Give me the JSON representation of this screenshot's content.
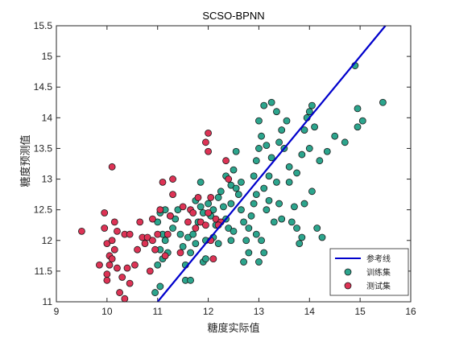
{
  "chart_data": {
    "type": "scatter",
    "title": "SCSO-BPNN",
    "xlabel": "糖度实际值",
    "ylabel": "糖度预测值",
    "xlim": [
      9,
      16
    ],
    "ylim": [
      11,
      15.5
    ],
    "x_ticks": [
      "9",
      "10",
      "11",
      "12",
      "13",
      "14",
      "15",
      "16"
    ],
    "y_ticks": [
      "11",
      "11.5",
      "12",
      "12.5",
      "13",
      "13.5",
      "14",
      "14.5",
      "15",
      "15.5"
    ],
    "grid": false,
    "legend_position": "bottom-right",
    "series": [
      {
        "name": "参考线",
        "kind": "line",
        "color": "#0000cc",
        "x": [
          11.0,
          15.5
        ],
        "y": [
          11.0,
          15.5
        ]
      },
      {
        "name": "训练集",
        "kind": "scatter",
        "color": "#2ca58d",
        "points": [
          [
            10.95,
            11.15
          ],
          [
            11.05,
            11.25
          ],
          [
            11.0,
            11.6
          ],
          [
            11.1,
            11.7
          ],
          [
            11.2,
            11.8
          ],
          [
            11.05,
            11.85
          ],
          [
            11.15,
            12.0
          ],
          [
            11.1,
            12.1
          ],
          [
            11.0,
            12.3
          ],
          [
            11.05,
            12.45
          ],
          [
            11.15,
            12.5
          ],
          [
            11.3,
            12.2
          ],
          [
            11.35,
            12.35
          ],
          [
            11.25,
            12.4
          ],
          [
            11.4,
            12.5
          ],
          [
            11.45,
            12.1
          ],
          [
            11.5,
            11.9
          ],
          [
            11.6,
            12.05
          ],
          [
            11.55,
            11.35
          ],
          [
            11.65,
            11.35
          ],
          [
            11.55,
            11.6
          ],
          [
            11.65,
            11.8
          ],
          [
            11.75,
            11.95
          ],
          [
            11.7,
            12.1
          ],
          [
            11.8,
            12.3
          ],
          [
            11.85,
            12.55
          ],
          [
            11.75,
            12.65
          ],
          [
            11.9,
            11.65
          ],
          [
            11.95,
            11.7
          ],
          [
            11.95,
            12.0
          ],
          [
            12.0,
            12.6
          ],
          [
            12.05,
            12.4
          ],
          [
            12.1,
            12.5
          ],
          [
            12.15,
            12.25
          ],
          [
            12.1,
            12.05
          ],
          [
            12.2,
            11.95
          ],
          [
            12.25,
            12.8
          ],
          [
            12.3,
            12.55
          ],
          [
            12.35,
            12.35
          ],
          [
            12.4,
            12.2
          ],
          [
            12.45,
            12.0
          ],
          [
            12.5,
            12.15
          ],
          [
            12.45,
            12.9
          ],
          [
            12.5,
            13.15
          ],
          [
            12.55,
            13.45
          ],
          [
            12.6,
            12.75
          ],
          [
            12.65,
            12.5
          ],
          [
            12.7,
            12.3
          ],
          [
            12.75,
            12.0
          ],
          [
            12.8,
            11.8
          ],
          [
            12.7,
            11.65
          ],
          [
            12.85,
            12.4
          ],
          [
            12.9,
            12.6
          ],
          [
            12.95,
            12.75
          ],
          [
            12.9,
            13.05
          ],
          [
            12.95,
            13.3
          ],
          [
            13.0,
            13.5
          ],
          [
            13.05,
            13.7
          ],
          [
            13.0,
            13.95
          ],
          [
            13.1,
            14.2
          ],
          [
            12.95,
            12.1
          ],
          [
            13.05,
            12.0
          ],
          [
            13.1,
            11.8
          ],
          [
            13.0,
            11.65
          ],
          [
            13.15,
            12.5
          ],
          [
            13.2,
            12.65
          ],
          [
            13.1,
            12.85
          ],
          [
            13.2,
            13.05
          ],
          [
            13.25,
            13.35
          ],
          [
            13.15,
            13.55
          ],
          [
            13.25,
            14.25
          ],
          [
            13.35,
            14.1
          ],
          [
            13.3,
            12.3
          ],
          [
            13.4,
            12.6
          ],
          [
            13.45,
            12.35
          ],
          [
            13.5,
            13.5
          ],
          [
            13.45,
            13.8
          ],
          [
            13.55,
            13.95
          ],
          [
            13.6,
            12.95
          ],
          [
            13.65,
            12.3
          ],
          [
            13.7,
            12.55
          ],
          [
            13.75,
            12.2
          ],
          [
            13.8,
            11.95
          ],
          [
            13.85,
            12.05
          ],
          [
            13.75,
            13.1
          ],
          [
            13.85,
            13.4
          ],
          [
            13.9,
            13.8
          ],
          [
            13.95,
            14.0
          ],
          [
            14.0,
            14.1
          ],
          [
            14.05,
            14.2
          ],
          [
            14.0,
            13.5
          ],
          [
            14.1,
            13.85
          ],
          [
            13.9,
            12.6
          ],
          [
            14.05,
            12.8
          ],
          [
            14.15,
            12.2
          ],
          [
            14.25,
            12.05
          ],
          [
            14.2,
            13.3
          ],
          [
            14.35,
            13.45
          ],
          [
            14.5,
            13.7
          ],
          [
            14.7,
            13.6
          ],
          [
            14.95,
            13.85
          ],
          [
            15.05,
            13.95
          ],
          [
            14.95,
            14.15
          ],
          [
            15.45,
            14.25
          ],
          [
            14.9,
            14.85
          ],
          [
            12.45,
            12.6
          ],
          [
            12.2,
            12.7
          ],
          [
            11.9,
            12.45
          ],
          [
            12.55,
            12.85
          ],
          [
            12.35,
            13.05
          ],
          [
            12.65,
            12.95
          ],
          [
            13.4,
            13.6
          ],
          [
            13.6,
            13.2
          ],
          [
            12.8,
            12.2
          ],
          [
            13.35,
            12.95
          ],
          [
            11.85,
            12.95
          ]
        ]
      },
      {
        "name": "测试集",
        "kind": "scatter",
        "color": "#dd3355",
        "points": [
          [
            9.5,
            12.15
          ],
          [
            9.85,
            11.6
          ],
          [
            9.95,
            12.2
          ],
          [
            10.0,
            11.95
          ],
          [
            9.95,
            12.45
          ],
          [
            10.0,
            11.45
          ],
          [
            10.05,
            11.75
          ],
          [
            10.1,
            11.7
          ],
          [
            10.05,
            11.6
          ],
          [
            10.0,
            11.35
          ],
          [
            10.15,
            11.85
          ],
          [
            10.2,
            11.55
          ],
          [
            10.1,
            12.0
          ],
          [
            10.15,
            12.3
          ],
          [
            10.2,
            12.15
          ],
          [
            10.1,
            13.2
          ],
          [
            10.25,
            11.15
          ],
          [
            10.3,
            11.4
          ],
          [
            10.35,
            11.05
          ],
          [
            10.4,
            11.55
          ],
          [
            10.45,
            11.3
          ],
          [
            10.35,
            12.1
          ],
          [
            10.45,
            12.1
          ],
          [
            10.55,
            11.6
          ],
          [
            10.6,
            11.85
          ],
          [
            10.65,
            12.3
          ],
          [
            10.7,
            12.05
          ],
          [
            10.75,
            11.95
          ],
          [
            10.8,
            12.05
          ],
          [
            10.85,
            11.5
          ],
          [
            10.9,
            12.0
          ],
          [
            10.95,
            11.85
          ],
          [
            10.9,
            12.35
          ],
          [
            11.0,
            12.1
          ],
          [
            11.05,
            12.5
          ],
          [
            11.15,
            11.75
          ],
          [
            11.2,
            12.1
          ],
          [
            11.25,
            12.4
          ],
          [
            11.3,
            12.75
          ],
          [
            11.1,
            12.95
          ],
          [
            11.45,
            11.8
          ],
          [
            11.5,
            12.55
          ],
          [
            11.6,
            12.3
          ],
          [
            11.65,
            12.5
          ],
          [
            11.75,
            12.2
          ],
          [
            11.7,
            12.45
          ],
          [
            11.8,
            12.7
          ],
          [
            11.85,
            12.3
          ],
          [
            11.95,
            12.25
          ],
          [
            12.0,
            13.45
          ],
          [
            11.95,
            13.6
          ],
          [
            12.0,
            13.75
          ],
          [
            12.05,
            12.0
          ],
          [
            12.1,
            11.7
          ],
          [
            12.15,
            12.35
          ],
          [
            12.25,
            12.3
          ],
          [
            12.05,
            12.7
          ],
          [
            12.4,
            13.0
          ],
          [
            12.35,
            13.3
          ],
          [
            12.2,
            12.25
          ],
          [
            12.0,
            12.45
          ],
          [
            11.3,
            13.0
          ]
        ]
      }
    ]
  }
}
